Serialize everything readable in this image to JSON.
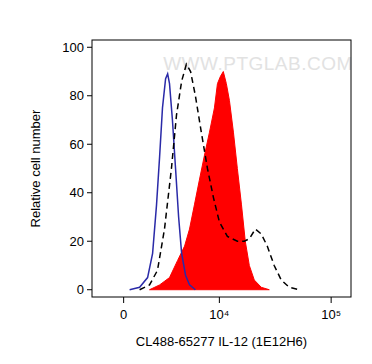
{
  "chart_data": {
    "type": "line",
    "x_label": "CL488-65277 IL-12 (1E12H6)",
    "y_label": "Relative cell number",
    "annotations": [
      "WWW.PTGLAB.COM"
    ],
    "log": "x",
    "xlim": [
      -2000,
      150000
    ],
    "xticks": [
      0,
      {
        "value": 10000,
        "label": "10⁴"
      },
      {
        "value": 100000,
        "label": "10⁵"
      }
    ],
    "ylim": [
      -3,
      103
    ],
    "yticks": [
      0,
      20,
      40,
      60,
      80,
      100
    ],
    "grid": false,
    "series": [
      {
        "type": "line",
        "color": "#2a2aa8",
        "line_style": "solid",
        "x": [
          353,
          960,
          1470,
          1810,
          2090,
          2320,
          2540,
          2790,
          2960,
          3120,
          3380,
          3670,
          3970,
          4280,
          4710,
          5170,
          5920
        ],
        "values": [
          0,
          1,
          5,
          15,
          35,
          55,
          75,
          87,
          89,
          85,
          70,
          50,
          30,
          15,
          6,
          2,
          0
        ]
      },
      {
        "type": "line",
        "color": "#000000",
        "line_style": "dashed",
        "x": [
          960,
          1600,
          2160,
          2700,
          3290,
          3760,
          4280,
          4800,
          5300,
          5920,
          6760,
          7740,
          8810,
          10000,
          11850,
          14590,
          16850,
          18700,
          21160,
          23930,
          27050,
          31200,
          36050,
          42400,
          52100
        ],
        "values": [
          0,
          2,
          8,
          25,
          50,
          72,
          86,
          93,
          90,
          80,
          65,
          50,
          38,
          28,
          22,
          20,
          20,
          21,
          25,
          23,
          18,
          10,
          4,
          1,
          0
        ]
      },
      {
        "type": "area",
        "color": "#ff0000",
        "line_style": "solid",
        "x": [
          1600,
          2320,
          3120,
          3860,
          4600,
          5170,
          5790,
          6460,
          7210,
          8090,
          9000,
          9600,
          10230,
          10870,
          11590,
          12370,
          13440,
          14590,
          15900,
          17200,
          18700,
          20720,
          23930,
          28200
        ],
        "values": [
          0,
          2,
          5,
          12,
          18,
          25,
          35,
          45,
          55,
          65,
          75,
          85,
          88,
          90,
          85,
          78,
          65,
          50,
          35,
          20,
          10,
          4,
          1,
          0
        ]
      }
    ]
  }
}
